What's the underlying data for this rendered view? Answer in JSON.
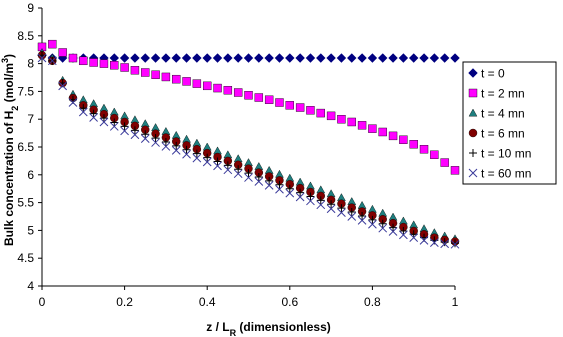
{
  "chart_data": {
    "type": "scatter",
    "xlabel": [
      "z / L",
      "R",
      " (dimensionless)"
    ],
    "ylabel": [
      "Bulk concentration of H",
      "2",
      " (mol/m",
      "3",
      ")"
    ],
    "xlim": [
      0,
      1
    ],
    "xticks": [
      0,
      0.2,
      0.4,
      0.6,
      0.8,
      1
    ],
    "ylim": [
      4,
      9
    ],
    "yticks": [
      4,
      4.5,
      5,
      5.5,
      6,
      6.5,
      7,
      7.5,
      8,
      8.5,
      9
    ],
    "grid": false,
    "legend": "right",
    "x": [
      0,
      0.025,
      0.05,
      0.075,
      0.1,
      0.125,
      0.15,
      0.175,
      0.2,
      0.225,
      0.25,
      0.275,
      0.3,
      0.325,
      0.35,
      0.375,
      0.4,
      0.425,
      0.45,
      0.475,
      0.5,
      0.525,
      0.55,
      0.575,
      0.6,
      0.625,
      0.65,
      0.675,
      0.7,
      0.725,
      0.75,
      0.775,
      0.8,
      0.825,
      0.85,
      0.875,
      0.9,
      0.925,
      0.95,
      0.975,
      1
    ],
    "series": [
      {
        "name": "t = 0",
        "color": "#000080",
        "marker": "diamond",
        "values": [
          8.15,
          8.1,
          8.1,
          8.1,
          8.1,
          8.1,
          8.1,
          8.1,
          8.1,
          8.1,
          8.1,
          8.1,
          8.1,
          8.1,
          8.1,
          8.1,
          8.1,
          8.1,
          8.1,
          8.1,
          8.1,
          8.1,
          8.1,
          8.1,
          8.1,
          8.1,
          8.1,
          8.1,
          8.1,
          8.1,
          8.1,
          8.1,
          8.1,
          8.1,
          8.1,
          8.1,
          8.1,
          8.1,
          8.1,
          8.1,
          8.1
        ]
      },
      {
        "name": "t = 2 mn",
        "color": "#ff00ff",
        "marker": "square",
        "values": [
          8.3,
          8.35,
          8.2,
          8.1,
          8.05,
          8.02,
          8.0,
          7.97,
          7.93,
          7.88,
          7.84,
          7.8,
          7.76,
          7.72,
          7.68,
          7.64,
          7.6,
          7.56,
          7.52,
          7.48,
          7.43,
          7.39,
          7.35,
          7.3,
          7.25,
          7.21,
          7.16,
          7.11,
          7.06,
          7.0,
          6.95,
          6.89,
          6.83,
          6.77,
          6.7,
          6.63,
          6.55,
          6.46,
          6.36,
          6.22,
          6.08
        ]
      },
      {
        "name": "t = 4 mn",
        "color": "#1f7f7f",
        "marker": "triangle",
        "values": [
          8.2,
          8.1,
          7.7,
          7.45,
          7.35,
          7.28,
          7.2,
          7.13,
          7.06,
          6.99,
          6.92,
          6.85,
          6.78,
          6.71,
          6.64,
          6.57,
          6.5,
          6.43,
          6.36,
          6.29,
          6.22,
          6.15,
          6.08,
          6.01,
          5.94,
          5.87,
          5.8,
          5.73,
          5.66,
          5.59,
          5.52,
          5.45,
          5.38,
          5.31,
          5.24,
          5.17,
          5.1,
          5.03,
          4.96,
          4.9,
          4.85
        ]
      },
      {
        "name": "t = 6 mn",
        "color": "#800000",
        "marker": "circle",
        "values": [
          8.15,
          8.05,
          7.65,
          7.38,
          7.25,
          7.17,
          7.09,
          7.02,
          6.95,
          6.88,
          6.81,
          6.74,
          6.67,
          6.6,
          6.53,
          6.46,
          6.39,
          6.32,
          6.25,
          6.18,
          6.11,
          6.04,
          5.97,
          5.9,
          5.83,
          5.76,
          5.69,
          5.62,
          5.55,
          5.48,
          5.41,
          5.34,
          5.27,
          5.2,
          5.13,
          5.06,
          4.99,
          4.93,
          4.87,
          4.83,
          4.8
        ]
      },
      {
        "name": "t = 10 mn",
        "color": "#000000",
        "marker": "plus",
        "values": [
          8.15,
          8.05,
          7.65,
          7.35,
          7.2,
          7.1,
          7.02,
          6.94,
          6.87,
          6.8,
          6.73,
          6.66,
          6.59,
          6.52,
          6.45,
          6.38,
          6.31,
          6.24,
          6.17,
          6.1,
          6.03,
          5.96,
          5.89,
          5.82,
          5.75,
          5.68,
          5.61,
          5.54,
          5.47,
          5.4,
          5.33,
          5.26,
          5.19,
          5.12,
          5.05,
          4.99,
          4.93,
          4.87,
          4.82,
          4.79,
          4.77
        ]
      },
      {
        "name": "t = 60 mn",
        "color": "#3a3a9a",
        "marker": "cross",
        "values": [
          8.1,
          8.05,
          7.6,
          7.3,
          7.13,
          7.03,
          6.95,
          6.87,
          6.79,
          6.72,
          6.65,
          6.58,
          6.51,
          6.44,
          6.37,
          6.3,
          6.23,
          6.16,
          6.09,
          6.02,
          5.95,
          5.88,
          5.81,
          5.74,
          5.67,
          5.6,
          5.53,
          5.46,
          5.39,
          5.32,
          5.25,
          5.18,
          5.11,
          5.04,
          4.98,
          4.92,
          4.87,
          4.82,
          4.78,
          4.76,
          4.75
        ]
      }
    ]
  }
}
